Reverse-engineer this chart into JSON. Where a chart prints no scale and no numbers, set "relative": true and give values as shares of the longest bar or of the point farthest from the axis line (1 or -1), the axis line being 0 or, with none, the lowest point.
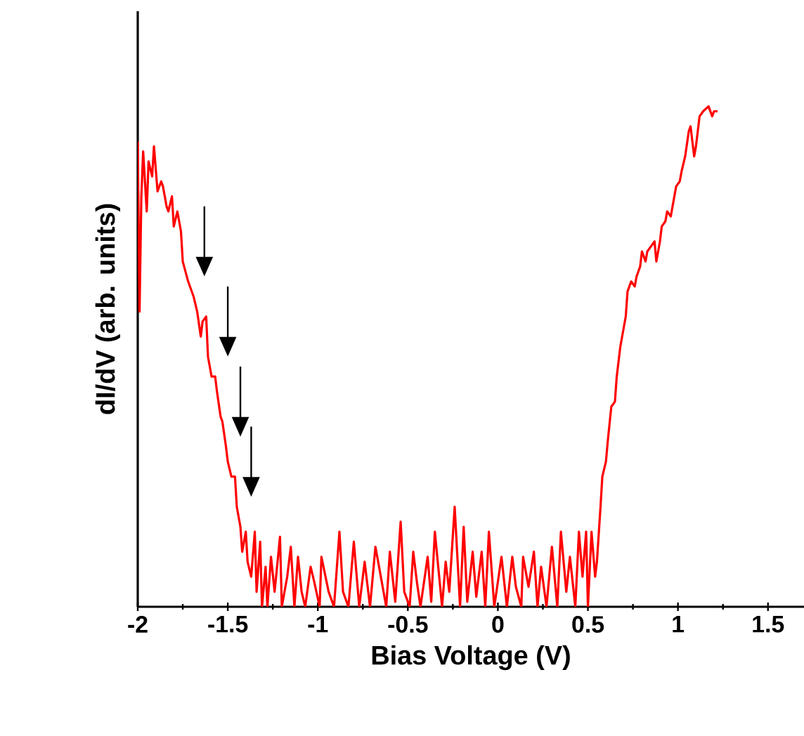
{
  "chart_data": {
    "type": "line",
    "relative": true,
    "xlabel": "Bias Voltage (V)",
    "ylabel": "dI/dV (arb. units)",
    "xlim": [
      -2,
      1.7
    ],
    "xticks": [
      -2,
      -1.5,
      -1,
      -0.5,
      0,
      0.5,
      1,
      1.5
    ],
    "tick_labels": "x",
    "grid": false,
    "marker": "none",
    "line_style": "solid",
    "series": [
      {
        "color": "#ff0000",
        "x": [
          -2.0,
          -1.99,
          -1.98,
          -1.97,
          -1.95,
          -1.94,
          -1.92,
          -1.91,
          -1.89,
          -1.87,
          -1.86,
          -1.84,
          -1.83,
          -1.81,
          -1.8,
          -1.78,
          -1.76,
          -1.75,
          -1.72,
          -1.69,
          -1.67,
          -1.65,
          -1.64,
          -1.62,
          -1.61,
          -1.59,
          -1.57,
          -1.56,
          -1.54,
          -1.53,
          -1.51,
          -1.5,
          -1.48,
          -1.46,
          -1.45,
          -1.43,
          -1.42,
          -1.4,
          -1.39,
          -1.37,
          -1.35,
          -1.34,
          -1.32,
          -1.31,
          -1.29,
          -1.28,
          -1.26,
          -1.24,
          -1.21,
          -1.2,
          -1.17,
          -1.15,
          -1.13,
          -1.11,
          -1.09,
          -1.07,
          -1.04,
          -1.02,
          -0.99,
          -0.98,
          -0.94,
          -0.91,
          -0.88,
          -0.86,
          -0.83,
          -0.8,
          -0.77,
          -0.74,
          -0.71,
          -0.68,
          -0.65,
          -0.62,
          -0.6,
          -0.57,
          -0.54,
          -0.52,
          -0.49,
          -0.47,
          -0.45,
          -0.43,
          -0.39,
          -0.37,
          -0.35,
          -0.31,
          -0.29,
          -0.27,
          -0.24,
          -0.21,
          -0.19,
          -0.17,
          -0.14,
          -0.12,
          -0.09,
          -0.07,
          -0.05,
          -0.02,
          0.02,
          0.05,
          0.08,
          0.1,
          0.13,
          0.14,
          0.17,
          0.2,
          0.22,
          0.24,
          0.27,
          0.3,
          0.33,
          0.35,
          0.38,
          0.4,
          0.43,
          0.45,
          0.47,
          0.49,
          0.5,
          0.52,
          0.54,
          0.55,
          0.57,
          0.58,
          0.6,
          0.61,
          0.63,
          0.65,
          0.66,
          0.68,
          0.69,
          0.71,
          0.72,
          0.74,
          0.76,
          0.77,
          0.79,
          0.8,
          0.82,
          0.83,
          0.85,
          0.87,
          0.88,
          0.9,
          0.91,
          0.93,
          0.94,
          0.96,
          0.98,
          0.99,
          1.01,
          1.02,
          1.04,
          1.06,
          1.07,
          1.09,
          1.1,
          1.12,
          1.14,
          1.17,
          1.19,
          1.2,
          1.22
        ],
        "values": [
          0.93,
          0.59,
          0.82,
          0.91,
          0.79,
          0.89,
          0.86,
          0.92,
          0.83,
          0.85,
          0.84,
          0.8,
          0.79,
          0.82,
          0.76,
          0.79,
          0.75,
          0.69,
          0.65,
          0.62,
          0.59,
          0.54,
          0.57,
          0.58,
          0.5,
          0.46,
          0.46,
          0.43,
          0.38,
          0.37,
          0.32,
          0.29,
          0.26,
          0.26,
          0.2,
          0.16,
          0.11,
          0.15,
          0.09,
          0.06,
          0.15,
          0.03,
          0.13,
          0,
          0.08,
          0,
          0.1,
          0.03,
          0.14,
          0,
          0.06,
          0.12,
          0,
          0.1,
          0.03,
          0,
          0.08,
          0.05,
          0,
          0.1,
          0.03,
          0,
          0.15,
          0.03,
          0,
          0.13,
          0,
          0.09,
          0,
          0.12,
          0.06,
          0,
          0.11,
          0.01,
          0.17,
          0.03,
          0,
          0.11,
          0.05,
          0,
          0.1,
          0.01,
          0.15,
          0,
          0.09,
          0.03,
          0.2,
          0,
          0.16,
          0.01,
          0.11,
          0.02,
          0.11,
          0,
          0.15,
          0,
          0.1,
          0,
          0.1,
          0.04,
          0,
          0.1,
          0.04,
          0.11,
          0,
          0.08,
          0,
          0.12,
          0,
          0.15,
          0.03,
          0.1,
          0,
          0.15,
          0.06,
          0.15,
          0,
          0.15,
          0.06,
          0.09,
          0.2,
          0.26,
          0.29,
          0.33,
          0.4,
          0.41,
          0.46,
          0.52,
          0.54,
          0.58,
          0.63,
          0.65,
          0.64,
          0.66,
          0.68,
          0.71,
          0.69,
          0.71,
          0.72,
          0.73,
          0.69,
          0.73,
          0.76,
          0.77,
          0.79,
          0.78,
          0.82,
          0.84,
          0.85,
          0.87,
          0.9,
          0.95,
          0.96,
          0.9,
          0.92,
          0.98,
          0.99,
          1.0,
          0.98,
          0.99,
          0.99
        ]
      }
    ]
  }
}
